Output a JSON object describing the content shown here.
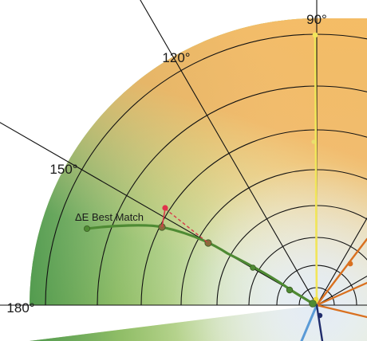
{
  "diagram": {
    "type": "polar-hue-chroma",
    "angle_labels": [
      "90°",
      "120°",
      "150°",
      "180°"
    ],
    "annotation": "ΔE Best Match",
    "colors": {
      "background_gradient": [
        "#6aa33c",
        "#b6cf52",
        "#f3ee72",
        "#ffffff"
      ],
      "grid": "#111111",
      "best_match_path": "#4e8a33",
      "best_match_point": "#8a6a3c",
      "target_point": "#e0324b",
      "target_offset": "#d83a4b",
      "yellow_hue_line": "#f2e65a",
      "orange_hue_line": "#d9701f",
      "blue_hue_line": "#5a9ad6",
      "navy_hue_line": "#1f2b6b"
    }
  }
}
